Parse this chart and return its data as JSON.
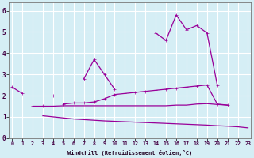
{
  "xlabel": "Windchill (Refroidissement éolien,°C)",
  "background_color": "#d5eef5",
  "grid_color": "#ffffff",
  "line_color": "#990099",
  "x_values": [
    0,
    1,
    2,
    3,
    4,
    5,
    6,
    7,
    8,
    9,
    10,
    11,
    12,
    13,
    14,
    15,
    16,
    17,
    18,
    19,
    20,
    21,
    22,
    23
  ],
  "series1": [
    2.4,
    2.1,
    null,
    null,
    2.0,
    null,
    null,
    2.8,
    3.7,
    3.0,
    2.3,
    null,
    null,
    null,
    4.95,
    4.6,
    5.8,
    5.1,
    5.3,
    4.95,
    2.5,
    null,
    null,
    null
  ],
  "series2": [
    null,
    null,
    1.5,
    1.5,
    null,
    1.6,
    1.65,
    1.65,
    1.7,
    1.85,
    2.05,
    2.1,
    2.15,
    2.2,
    2.25,
    2.3,
    2.35,
    2.4,
    2.45,
    2.5,
    1.6,
    1.55,
    null,
    null
  ],
  "series3": [
    null,
    null,
    null,
    1.5,
    1.5,
    1.52,
    1.52,
    1.52,
    1.52,
    1.52,
    1.52,
    1.52,
    1.52,
    1.52,
    1.52,
    1.52,
    1.55,
    1.55,
    1.6,
    1.62,
    1.58,
    1.55,
    null,
    null
  ],
  "series4": [
    null,
    null,
    null,
    1.05,
    1.0,
    0.95,
    0.9,
    0.87,
    0.84,
    0.81,
    0.79,
    0.77,
    0.75,
    0.73,
    0.71,
    0.69,
    0.67,
    0.65,
    0.63,
    0.61,
    0.58,
    0.56,
    0.53,
    0.48
  ],
  "xlim": [
    -0.3,
    23.3
  ],
  "ylim": [
    0,
    6.4
  ],
  "yticks": [
    0,
    1,
    2,
    3,
    4,
    5,
    6
  ],
  "xlabel_fontsize": 5.0,
  "tick_fontsize": 4.8,
  "ytick_fontsize": 5.5
}
